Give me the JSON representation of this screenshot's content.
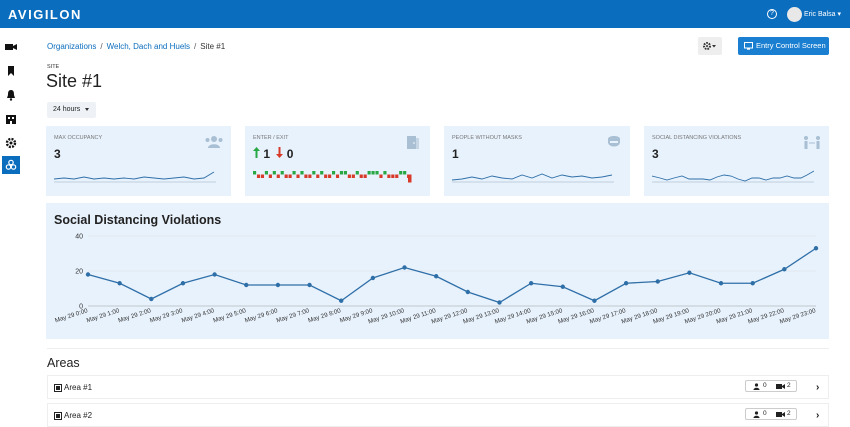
{
  "app": {
    "logo_text": "AVIGILON"
  },
  "header": {
    "help_icon": "question-circle-icon",
    "user_name": "Eric Balsa"
  },
  "sidebar": {
    "items": [
      {
        "name": "video-camera-icon"
      },
      {
        "name": "bookmark-icon"
      },
      {
        "name": "bell-icon"
      },
      {
        "name": "building-icon"
      },
      {
        "name": "gear-icon"
      },
      {
        "name": "biohazard-icon",
        "active": true
      }
    ]
  },
  "breadcrumb": {
    "items": [
      "Organizations",
      "Welch, Dach and Huels",
      "Site #1"
    ]
  },
  "toolbar": {
    "entry_button_label": "Entry Control Screen"
  },
  "site": {
    "label": "SITE",
    "title": "Site #1",
    "range_label": "24 hours"
  },
  "cards": [
    {
      "title": "MAX OCCUPANCY",
      "value": "3",
      "icon": "users-icon"
    },
    {
      "title": "ENTER / EXIT",
      "enter": "1",
      "exit": "0",
      "icon": "door-icon"
    },
    {
      "title": "PEOPLE WITHOUT MASKS",
      "value": "1",
      "icon": "mask-icon"
    },
    {
      "title": "SOCIAL DISTANCING VIOLATIONS",
      "value": "3",
      "icon": "distancing-icon"
    }
  ],
  "chart_data": {
    "type": "line",
    "title": "Social Distancing Violations",
    "xlabel": "",
    "ylabel": "",
    "ylim": [
      0,
      40
    ],
    "yticks": [
      0,
      20,
      40
    ],
    "categories": [
      "May 29 0:00",
      "May 29 1:00",
      "May 29 2:00",
      "May 29 3:00",
      "May 29 4:00",
      "May 29 5:00",
      "May 29 6:00",
      "May 29 7:00",
      "May 29 8:00",
      "May 29 9:00",
      "May 29 10:00",
      "May 29 11:00",
      "May 29 12:00",
      "May 29 13:00",
      "May 29 14:00",
      "May 29 15:00",
      "May 29 16:00",
      "May 29 17:00",
      "May 29 18:00",
      "May 29 19:00",
      "May 29 20:00",
      "May 29 21:00",
      "May 29 22:00",
      "May 29 23:00"
    ],
    "values": [
      18,
      13,
      4,
      13,
      18,
      12,
      12,
      12,
      3,
      16,
      22,
      17,
      8,
      2,
      13,
      11,
      3,
      13,
      14,
      19,
      13,
      13,
      21,
      33
    ],
    "color": "#2f6fa8",
    "grid": true
  },
  "areas": {
    "title": "Areas",
    "rows": [
      {
        "label": "Area #1",
        "people": "0",
        "cameras": "2"
      },
      {
        "label": "Area #2",
        "people": "0",
        "cameras": "2"
      }
    ]
  }
}
